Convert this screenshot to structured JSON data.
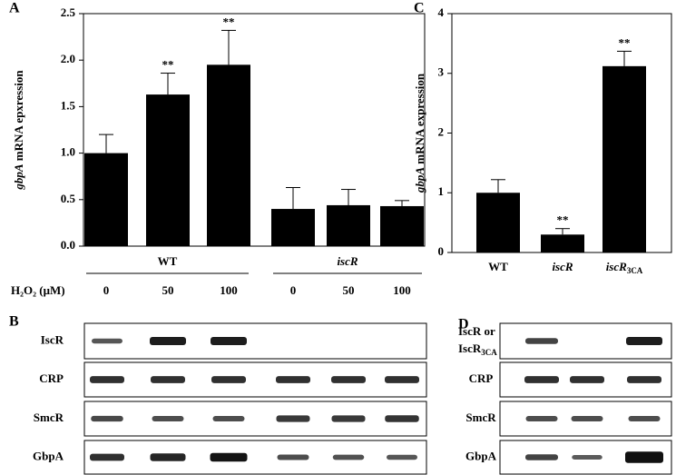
{
  "chart_data": [
    {
      "type": "bar",
      "panel": "A",
      "ylabel": [
        "gbpA",
        "mRNA epxression"
      ],
      "categories": [
        "0",
        "50",
        "100",
        "0",
        "50",
        "100"
      ],
      "values": [
        1.0,
        1.63,
        1.95,
        0.4,
        0.44,
        0.43
      ],
      "errors": [
        0.2,
        0.23,
        0.37,
        0.23,
        0.17,
        0.06
      ],
      "significance": [
        null,
        "**",
        "**",
        null,
        null,
        null
      ],
      "groups": [
        {
          "label": "WT",
          "size": 3,
          "italic": false
        },
        {
          "label": "iscR",
          "size": 3,
          "italic": true
        }
      ],
      "xlabel": "H₂O₂ (μM)",
      "ylim": [
        0,
        2.5
      ],
      "yticks": [
        {
          "value": 0,
          "label": "0.0"
        },
        0.5,
        {
          "value": 1,
          "label": "1.0"
        },
        1.5,
        {
          "value": 2,
          "label": "2.0"
        },
        2.5
      ],
      "color": "#000000"
    },
    {
      "type": "bar",
      "panel": "C",
      "ylabel": [
        "gbpA",
        "mRNA expression"
      ],
      "categories": [
        "WT",
        "iscR",
        "iscR"
      ],
      "category_subscripts": [
        null,
        null,
        "3CA"
      ],
      "italic_categories": [
        false,
        true,
        true
      ],
      "values": [
        1.0,
        0.3,
        3.12
      ],
      "errors": [
        0.22,
        0.1,
        0.25
      ],
      "significance": [
        null,
        "**",
        "**"
      ],
      "ylim": [
        0,
        4
      ],
      "yticks": [
        0,
        1,
        2,
        3,
        4
      ],
      "color": "#000000"
    }
  ],
  "blots": [
    {
      "panel": "B",
      "rows": [
        {
          "label": [
            "IscR"
          ]
        },
        {
          "label": [
            "CRP"
          ]
        },
        {
          "label": [
            "SmcR"
          ]
        },
        {
          "label": [
            "GbpA"
          ]
        }
      ]
    },
    {
      "panel": "D",
      "rows": [
        {
          "label": [
            "IscR or",
            "IscR"
          ],
          "subscript": "3CA"
        },
        {
          "label": [
            "CRP"
          ]
        },
        {
          "label": [
            "SmcR"
          ]
        },
        {
          "label": [
            "GbpA"
          ]
        }
      ]
    }
  ]
}
